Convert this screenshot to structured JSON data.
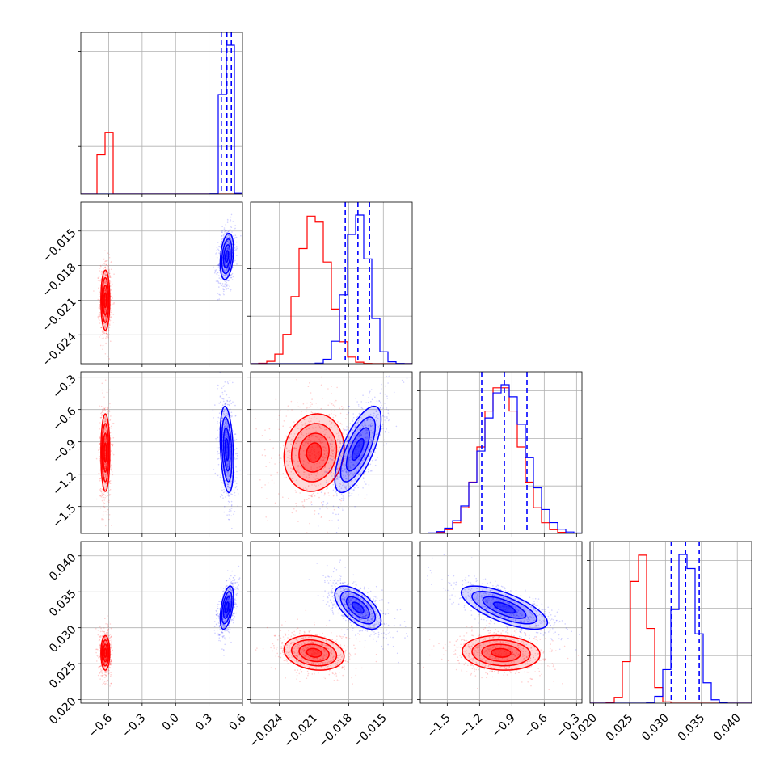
{
  "chart_data": {
    "type": "corner",
    "grid": true,
    "colors": {
      "red": "#ff0000",
      "blue": "#0000ff",
      "grid": "#b0b0b0"
    },
    "parameters": [
      {
        "range": [
          -0.85,
          0.6
        ],
        "ticks": [
          -0.6,
          -0.3,
          0.0,
          0.3,
          0.6
        ],
        "tick_labels": [
          "−0.6",
          "−0.3",
          "0.0",
          "0.3",
          "0.6"
        ],
        "series": [
          {
            "color": "red",
            "mean": -0.63,
            "sd": 0.02
          },
          {
            "color": "blue",
            "mean": 0.46,
            "sd": 0.03,
            "quantiles": [
              0.41,
              0.46,
              0.5
            ]
          }
        ]
      },
      {
        "range": [
          -0.0265,
          -0.0125
        ],
        "ticks": [
          -0.024,
          -0.021,
          -0.018,
          -0.015
        ],
        "tick_labels": [
          "−0.024",
          "−0.021",
          "−0.018",
          "−0.015"
        ],
        "series": [
          {
            "color": "red",
            "mean": -0.021,
            "sd": 0.0013
          },
          {
            "color": "blue",
            "mean": -0.0172,
            "sd": 0.001,
            "quantiles": [
              -0.0183,
              -0.0172,
              -0.0162
            ]
          }
        ]
      },
      {
        "range": [
          -1.75,
          -0.25
        ],
        "ticks": [
          -1.5,
          -1.2,
          -0.9,
          -0.6,
          -0.3
        ],
        "tick_labels": [
          "−1.5",
          "−1.2",
          "−0.9",
          "−0.6",
          "−0.3"
        ],
        "series": [
          {
            "color": "red",
            "mean": -1.0,
            "sd": 0.18
          },
          {
            "color": "blue",
            "mean": -0.97,
            "sd": 0.2,
            "quantiles": [
              -1.18,
              -0.97,
              -0.76
            ]
          }
        ]
      },
      {
        "range": [
          0.0195,
          0.042
        ],
        "ticks": [
          0.02,
          0.025,
          0.03,
          0.035,
          0.04
        ],
        "tick_labels": [
          "0.020",
          "0.025",
          "0.030",
          "0.035",
          "0.040"
        ],
        "series": [
          {
            "color": "red",
            "mean": 0.0265,
            "sd": 0.0012
          },
          {
            "color": "blue",
            "mean": 0.0328,
            "sd": 0.0015,
            "quantiles": [
              0.0308,
              0.0328,
              0.0347
            ]
          }
        ]
      }
    ],
    "correlations": {
      "red": {
        "1_0": 0.0,
        "2_0": 0.0,
        "2_1": 0.1,
        "3_0": 0.0,
        "3_1": -0.2,
        "3_2": -0.1
      },
      "blue": {
        "1_0": 0.3,
        "2_0": -0.3,
        "2_1": 0.7,
        "3_0": 0.5,
        "3_1": -0.6,
        "3_2": -0.7
      }
    }
  }
}
